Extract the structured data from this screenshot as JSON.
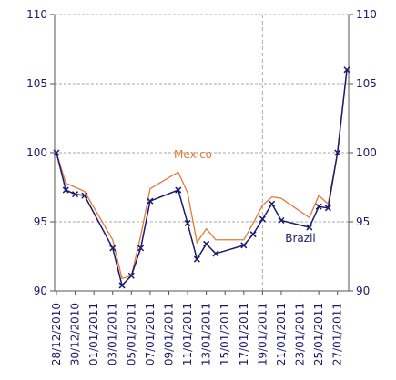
{
  "chart_data": {
    "type": "line",
    "x": [
      "28/12/2010",
      "29/12/2010",
      "30/12/2010",
      "31/12/2010",
      "03/01/2011",
      "04/01/2011",
      "05/01/2011",
      "06/01/2011",
      "07/01/2011",
      "10/01/2011",
      "11/01/2011",
      "12/01/2011",
      "13/01/2011",
      "14/01/2011",
      "17/01/2011",
      "18/01/2011",
      "19/01/2011",
      "20/01/2011",
      "21/01/2011",
      "24/01/2011",
      "25/01/2011",
      "26/01/2011",
      "27/01/2011",
      "28/01/2011"
    ],
    "series": [
      {
        "name": "Mexico",
        "color": "#e07b39",
        "values": [
          100,
          97.8,
          97.5,
          97.2,
          93.7,
          90.9,
          91.1,
          94,
          97.4,
          98.6,
          97.1,
          93.5,
          94.5,
          93.7,
          93.7,
          94.9,
          96.2,
          96.8,
          96.7,
          95.3,
          96.9,
          96.3,
          100,
          106
        ]
      },
      {
        "name": "Brazil",
        "color": "#1a1a6e",
        "values": [
          100,
          97.3,
          97,
          96.9,
          93.1,
          90.4,
          91.1,
          93.1,
          96.5,
          97.3,
          94.9,
          92.3,
          93.4,
          92.7,
          93.3,
          94.1,
          95.2,
          96.3,
          95.1,
          94.6,
          96.1,
          96,
          100,
          106
        ]
      }
    ],
    "xlim": [
      "28/12/2010",
      "28/01/2011"
    ],
    "xticks": [
      "28/12/2010",
      "30/12/2010",
      "01/01/2011",
      "03/01/2011",
      "05/01/2011",
      "07/01/2011",
      "09/01/2011",
      "11/01/2011",
      "13/01/2011",
      "15/01/2011",
      "17/01/2011",
      "19/01/2011",
      "21/01/2011",
      "23/01/2011",
      "25/01/2011",
      "27/01/2011"
    ],
    "ylim": [
      90,
      110
    ],
    "yticks": [
      90,
      95,
      100,
      105,
      110
    ],
    "y2lim": [
      90,
      110
    ],
    "y2ticks": [
      90,
      95,
      100,
      105,
      110
    ],
    "grid": true,
    "vline": "19/01/2011"
  }
}
